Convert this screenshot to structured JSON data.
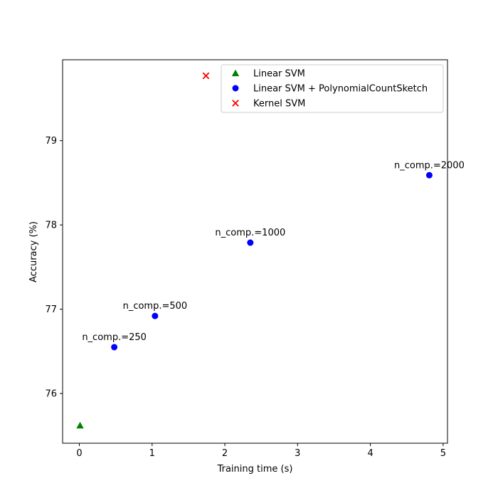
{
  "chart_data": {
    "type": "scatter",
    "title": "",
    "xlabel": "Training time (s)",
    "ylabel": "Accuracy (%)",
    "xlim": [
      -0.23,
      5.06
    ],
    "ylim": [
      75.41,
      79.96
    ],
    "xticks": [
      0,
      1,
      2,
      3,
      4,
      5
    ],
    "yticks": [
      76,
      77,
      78,
      79
    ],
    "grid": false,
    "legend_position": "top-right",
    "series": [
      {
        "name": "Linear SVM",
        "marker": "triangle",
        "color": "#008000",
        "points": [
          {
            "x": 0.01,
            "y": 75.62
          }
        ]
      },
      {
        "name": "Linear SVM + PolynomialCountSketch",
        "marker": "circle",
        "color": "#0000ff",
        "points": [
          {
            "x": 0.48,
            "y": 76.55,
            "label": "n_comp.=250"
          },
          {
            "x": 1.04,
            "y": 76.92,
            "label": "n_comp.=500"
          },
          {
            "x": 2.35,
            "y": 77.79,
            "label": "n_comp.=1000"
          },
          {
            "x": 4.81,
            "y": 78.59,
            "label": "n_comp.=2000"
          }
        ]
      },
      {
        "name": "Kernel SVM",
        "marker": "x",
        "color": "#ff0000",
        "points": [
          {
            "x": 1.74,
            "y": 79.77
          }
        ]
      }
    ]
  }
}
